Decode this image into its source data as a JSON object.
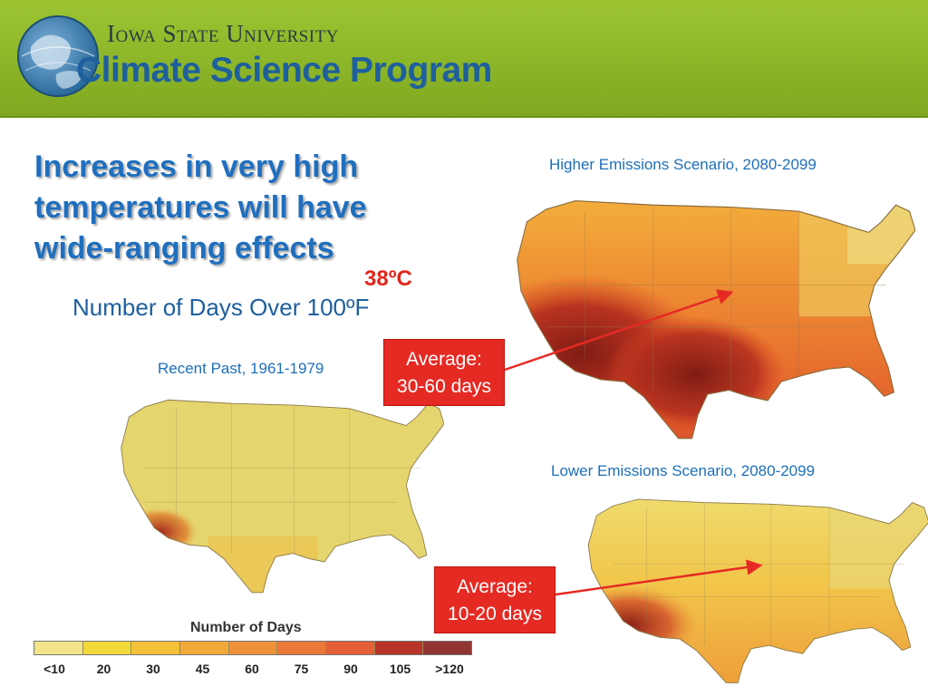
{
  "header": {
    "university": "Iowa State University",
    "program": "Climate Science Program"
  },
  "slide": {
    "title": "Increases in very high temperatures will have wide-ranging effects",
    "celsius_label": "38ºC",
    "subtitle": "Number of Days Over 100ºF"
  },
  "maps": {
    "higher": {
      "caption": "Higher Emissions Scenario, 2080-2099",
      "average_line1": "Average:",
      "average_line2": "30-60 days"
    },
    "recent": {
      "caption": "Recent Past, 1961-1979"
    },
    "lower": {
      "caption": "Lower Emissions Scenario, 2080-2099",
      "average_line1": "Average:",
      "average_line2": "10-20 days"
    }
  },
  "legend": {
    "title": "Number of Days",
    "ticks": [
      "<10",
      "20",
      "30",
      "45",
      "60",
      "75",
      "90",
      "105",
      ">120"
    ],
    "colors": [
      "#f2e48a",
      "#f2d93a",
      "#f3c13a",
      "#f2a83a",
      "#ef9138",
      "#ea7838",
      "#e45e38",
      "#b8332a",
      "#923431"
    ]
  },
  "colors": {
    "accent_blue": "#1f6fbf",
    "banner_green": "#8fb82a",
    "callout_red": "#e52a23"
  }
}
